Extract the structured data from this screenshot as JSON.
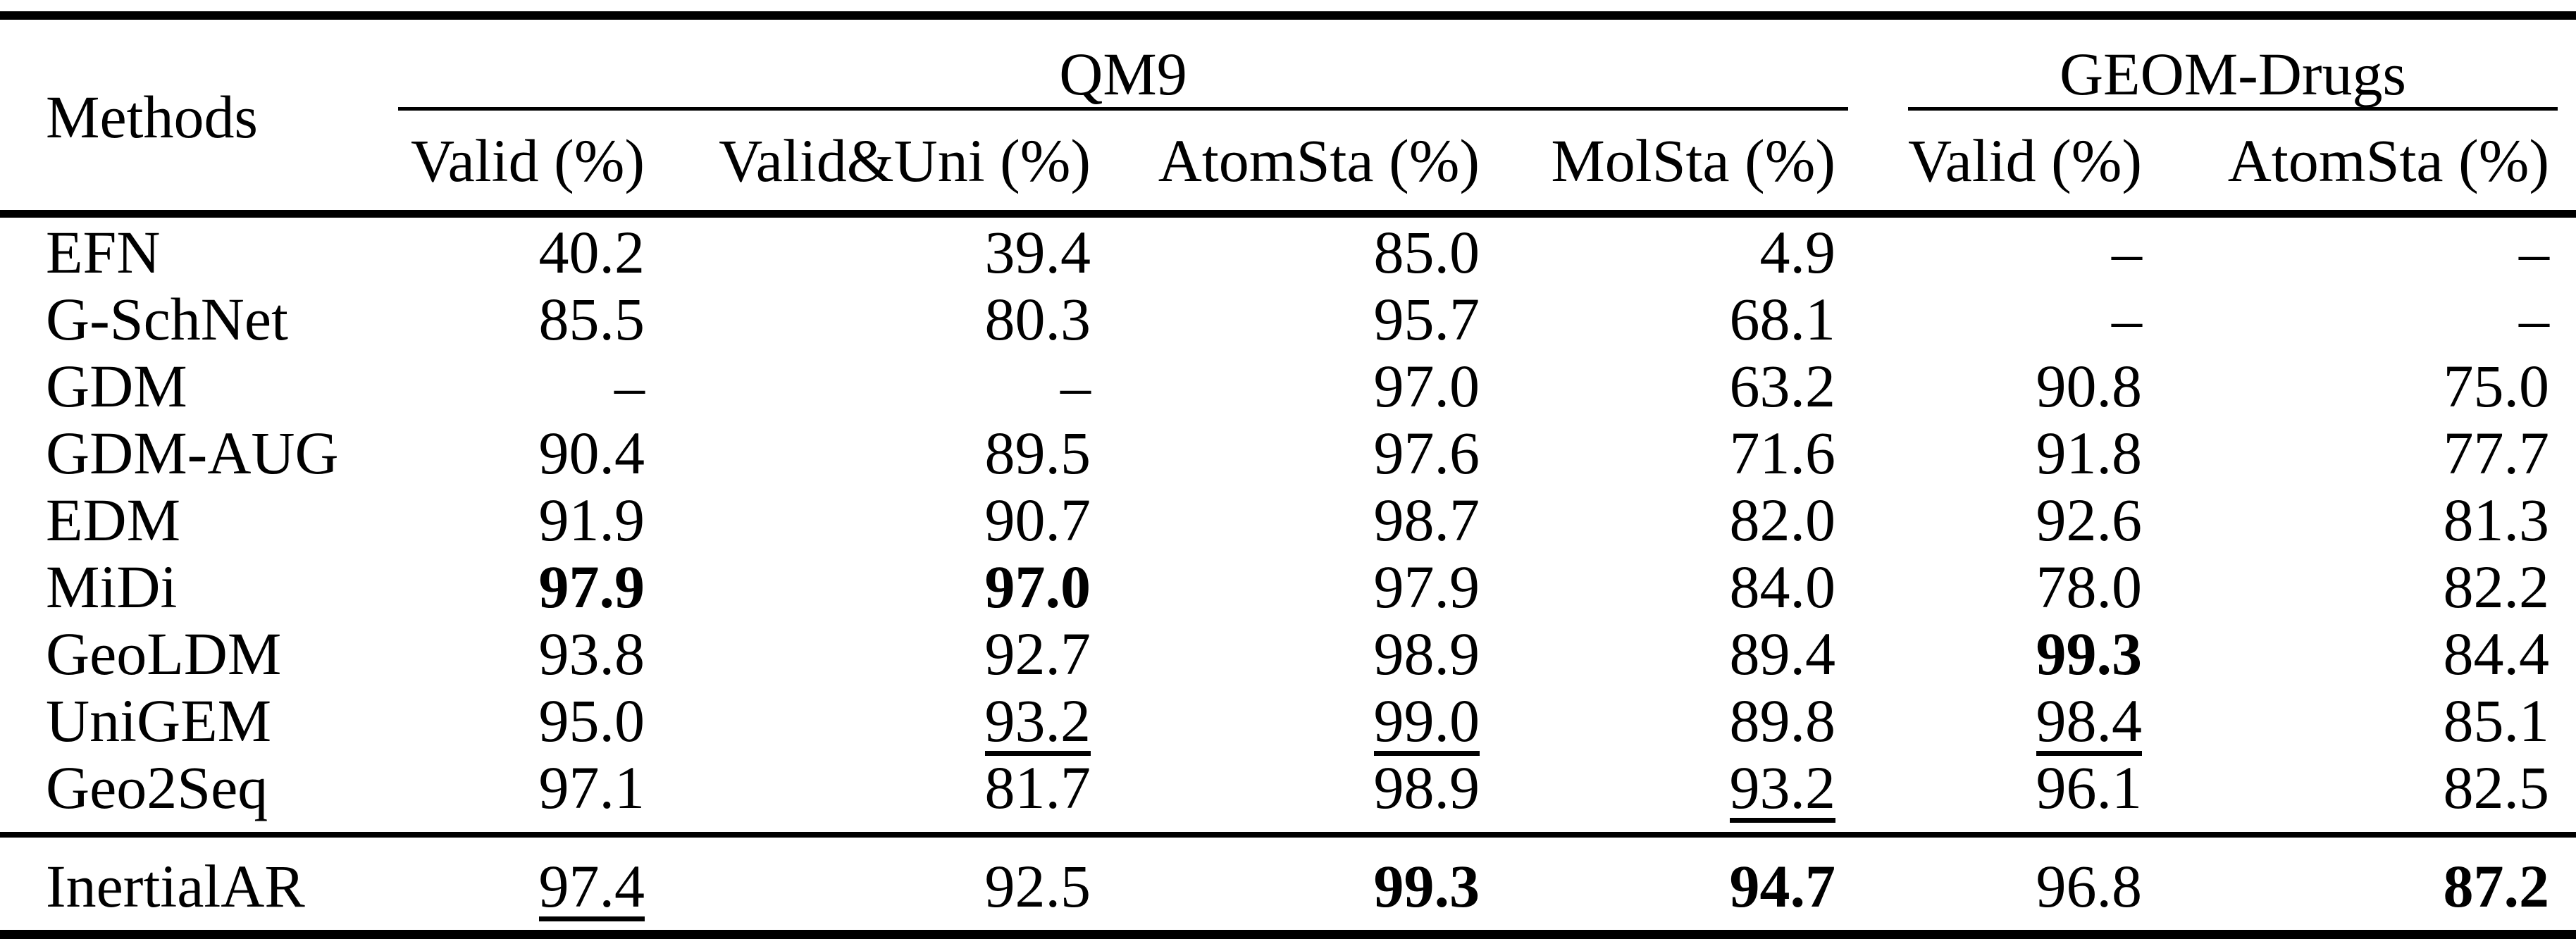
{
  "table": {
    "methods_header": "Methods",
    "groups": [
      {
        "label": "QM9"
      },
      {
        "label": "GEOM-Drugs"
      }
    ],
    "sub_headers": [
      "Valid (%)",
      "Valid&Uni (%)",
      "AtomSta (%)",
      "MolSta (%)",
      "Valid (%)",
      "AtomSta (%)"
    ],
    "rows": [
      {
        "method": "EFN",
        "cells": [
          "40.2",
          "39.4",
          "85.0",
          "4.9",
          "–",
          "–"
        ]
      },
      {
        "method": "G-SchNet",
        "cells": [
          "85.5",
          "80.3",
          "95.7",
          "68.1",
          "–",
          "–"
        ]
      },
      {
        "method": "GDM",
        "cells": [
          "–",
          "–",
          "97.0",
          "63.2",
          "90.8",
          "75.0"
        ]
      },
      {
        "method": "GDM-AUG",
        "cells": [
          "90.4",
          "89.5",
          "97.6",
          "71.6",
          "91.8",
          "77.7"
        ]
      },
      {
        "method": "EDM",
        "cells": [
          "91.9",
          "90.7",
          "98.7",
          "82.0",
          "92.6",
          "81.3"
        ]
      },
      {
        "method": "MiDi",
        "cells": [
          "97.9",
          "97.0",
          "97.9",
          "84.0",
          "78.0",
          "82.2"
        ]
      },
      {
        "method": "GeoLDM",
        "cells": [
          "93.8",
          "92.7",
          "98.9",
          "89.4",
          "99.3",
          "84.4"
        ]
      },
      {
        "method": "UniGEM",
        "cells": [
          "95.0",
          "93.2",
          "99.0",
          "89.8",
          "98.4",
          "85.1"
        ]
      },
      {
        "method": "Geo2Seq",
        "cells": [
          "97.1",
          "81.7",
          "98.9",
          "93.2",
          "96.1",
          "82.5"
        ]
      }
    ],
    "final_row": {
      "method": "InertialAR",
      "cells": [
        "97.4",
        "92.5",
        "99.3",
        "94.7",
        "96.8",
        "87.2"
      ]
    }
  }
}
